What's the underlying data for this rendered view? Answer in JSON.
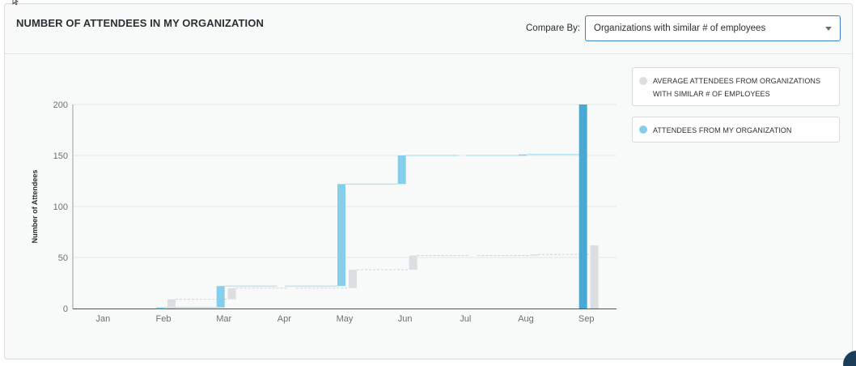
{
  "header": {
    "title": "NUMBER OF ATTENDEES IN MY ORGANIZATION",
    "compare_label": "Compare By:",
    "compare_value": "Organizations with similar # of employees",
    "compare_icon": "chevron-down-icon"
  },
  "legend": [
    {
      "label": "AVERAGE ATTENDEES FROM ORGANIZATIONS WITH SIMILAR # OF EMPLOYEES",
      "color": "#dcdee2"
    },
    {
      "label": "ATTENDEES FROM MY ORGANIZATION",
      "color": "#85cfeb"
    }
  ],
  "chart_data": {
    "type": "bar",
    "subtype": "cumulative-waterfall",
    "ylabel": "Number of Attendees",
    "ylim": [
      0,
      200
    ],
    "yticks": [
      0,
      50,
      100,
      150,
      200
    ],
    "grid": true,
    "categories": [
      "Jan",
      "Feb",
      "Mar",
      "Apr",
      "May",
      "Jun",
      "Jul",
      "Aug",
      "Sep"
    ],
    "series": [
      {
        "name": "ATTENDEES FROM MY ORGANIZATION",
        "color": "#85cfeb",
        "total_color": "#49a9d3",
        "cumulative": [
          0,
          1,
          22,
          22,
          122,
          150,
          150,
          151,
          200
        ]
      },
      {
        "name": "AVERAGE ATTENDEES FROM ORGANIZATIONS WITH SIMILAR # OF EMPLOYEES",
        "color": "#dcdee2",
        "cumulative": [
          0,
          9,
          20,
          20,
          38,
          52,
          52,
          53,
          62
        ]
      }
    ]
  }
}
